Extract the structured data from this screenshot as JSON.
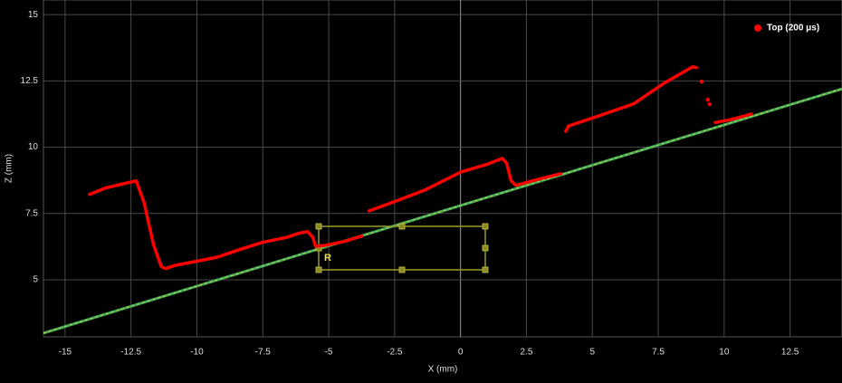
{
  "chart_data": {
    "type": "line",
    "xlabel": "X (mm)",
    "ylabel": "Z (mm)",
    "xlim": [
      -15.82,
      14.47
    ],
    "xticks": [
      -15,
      -12.5,
      -10,
      -7.5,
      -5,
      -2.5,
      0,
      2.5,
      5,
      7.5,
      10,
      12.5
    ],
    "ylim": [
      2.85,
      15.55
    ],
    "yticks": [
      5,
      7.5,
      10,
      12.5,
      15
    ],
    "grid": true,
    "legend": "top-right",
    "series": [
      {
        "name": "Top (200 μs)",
        "color": "#ff0000",
        "x": [
          -14.07,
          -13.5,
          -12.8,
          -12.3,
          -12.0,
          -11.65,
          -11.35,
          -11.2,
          -10.8,
          -10.0,
          -9.24,
          -8.5,
          -7.52,
          -6.6,
          -6.15,
          -5.8,
          -5.6,
          -5.5,
          -5.12,
          -4.4,
          -3.75,
          null,
          -3.47,
          -2.5,
          -1.34,
          0.03,
          1.0,
          1.58,
          1.75,
          1.92,
          2.1,
          3.0,
          3.8,
          null,
          3.99,
          4.1,
          5.3,
          6.56,
          7.7,
          8.8,
          8.95,
          null,
          9.14,
          null,
          9.38,
          null,
          9.45,
          null,
          9.66,
          10.3,
          11.03
        ],
        "values": [
          8.22,
          8.45,
          8.62,
          8.73,
          7.9,
          6.34,
          5.5,
          5.42,
          5.55,
          5.7,
          5.85,
          6.1,
          6.41,
          6.6,
          6.75,
          6.82,
          6.6,
          6.27,
          6.3,
          6.45,
          6.65,
          null,
          7.6,
          7.95,
          8.39,
          9.07,
          9.35,
          9.58,
          9.4,
          8.73,
          8.56,
          8.8,
          9.0,
          null,
          10.6,
          10.8,
          11.2,
          11.63,
          12.4,
          13.03,
          13.0,
          null,
          12.47,
          null,
          11.79,
          null,
          11.62,
          null,
          10.93,
          11.05,
          11.25
        ]
      }
    ],
    "fit_line": {
      "x": [
        -15.82,
        14.47
      ],
      "values": [
        2.99,
        12.2
      ],
      "color": "#3fae5a"
    },
    "roi_label": "R"
  }
}
